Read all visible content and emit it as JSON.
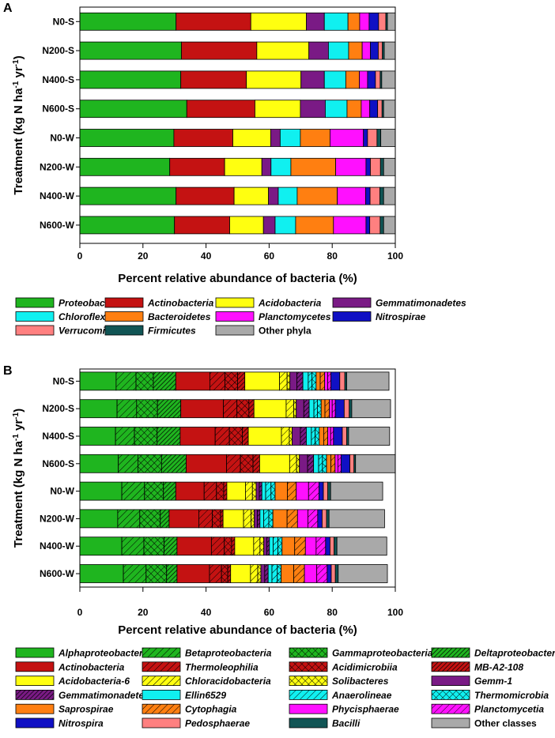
{
  "chart_data": [
    {
      "panel": "A",
      "type": "bar",
      "orientation": "horizontal",
      "stacked": true,
      "xlabel": "Percent relative abundance of bacteria (%)",
      "ylabel": "Treatment (kg N ha-1 yr-1)",
      "ylabel_parts": [
        "Treatment (kg N ha",
        "-1",
        " yr",
        "-1",
        ")"
      ],
      "xlim": [
        0,
        100
      ],
      "xticks": [
        0,
        20,
        40,
        60,
        80,
        100
      ],
      "categories": [
        "N0-S",
        "N200-S",
        "N400-S",
        "N600-S",
        "N0-W",
        "N200-W",
        "N400-W",
        "N600-W"
      ],
      "series": [
        {
          "name": "Proteobacteria",
          "color": "#1fb51f",
          "values": [
            30.5,
            32.2,
            32.0,
            33.9,
            29.8,
            28.5,
            30.5,
            30.0
          ]
        },
        {
          "name": "Actinobacteria",
          "color": "#c41212",
          "values": [
            23.7,
            23.9,
            20.8,
            21.6,
            18.7,
            17.4,
            18.4,
            17.5
          ]
        },
        {
          "name": "Acidobacteria",
          "color": "#ffff10",
          "values": [
            17.6,
            16.5,
            17.3,
            14.4,
            12.0,
            11.8,
            10.9,
            10.7
          ]
        },
        {
          "name": "Gemmatimonadetes",
          "color": "#7a1a85",
          "values": [
            5.7,
            6.2,
            7.4,
            7.9,
            3.0,
            2.9,
            3.1,
            3.7
          ]
        },
        {
          "name": "Chloroflexi",
          "color": "#10f0f0",
          "values": [
            7.5,
            6.4,
            6.8,
            6.9,
            6.4,
            6.3,
            6.0,
            6.5
          ]
        },
        {
          "name": "Bacteroidetes",
          "color": "#ff7f11",
          "values": [
            3.7,
            4.3,
            4.3,
            4.5,
            9.4,
            14.2,
            12.7,
            12.0
          ]
        },
        {
          "name": "Planctomycetes",
          "color": "#ff10ff",
          "values": [
            3.0,
            2.6,
            2.6,
            2.7,
            10.6,
            9.6,
            9.0,
            10.3
          ]
        },
        {
          "name": "Nitrospirae",
          "color": "#1010c4",
          "values": [
            3.0,
            2.5,
            2.5,
            2.5,
            1.3,
            1.4,
            1.4,
            1.2
          ]
        },
        {
          "name": "Verrucomicrobia",
          "color": "#ff8080",
          "values": [
            2.3,
            1.3,
            1.5,
            1.4,
            3.0,
            3.2,
            3.1,
            3.3
          ]
        },
        {
          "name": "Firmicutes",
          "color": "#115555",
          "values": [
            0.5,
            0.6,
            0.5,
            0.5,
            1.2,
            1.0,
            1.2,
            1.1
          ]
        },
        {
          "name": "Other phyla",
          "color": "#a9a9a9",
          "values": [
            2.5,
            3.5,
            4.3,
            3.7,
            4.6,
            3.7,
            3.7,
            3.7
          ]
        }
      ]
    },
    {
      "panel": "B",
      "type": "bar",
      "orientation": "horizontal",
      "stacked": true,
      "xlabel": "Percent relative abundance of bacteria (%)",
      "ylabel": "Treatment (kg N ha-1 yr-1)",
      "ylabel_parts": [
        "Treatment (kg N ha",
        "-1",
        " yr",
        "-1",
        ")"
      ],
      "xlim": [
        0,
        100
      ],
      "xticks": [
        0,
        20,
        40,
        60,
        80,
        100
      ],
      "categories": [
        "N0-S",
        "N200-S",
        "N400-S",
        "N600-S",
        "N0-W",
        "N200-W",
        "N400-W",
        "N600-W"
      ],
      "series": [
        {
          "name": "Alphaproteobacteria",
          "color": "#1fb51f",
          "pattern": "none",
          "values": [
            11.5,
            11.8,
            11.3,
            12.2,
            13.3,
            12.0,
            13.3,
            13.8
          ]
        },
        {
          "name": "Betaproteobacteria",
          "color": "#1fb51f",
          "pattern": "diag",
          "values": [
            6.3,
            6.2,
            6.0,
            6.2,
            7.2,
            7.0,
            7.0,
            7.2
          ]
        },
        {
          "name": "Gammaproteobacteria",
          "color": "#1fb51f",
          "pattern": "cross",
          "values": [
            5.5,
            6.6,
            7.2,
            7.5,
            6.0,
            6.5,
            6.4,
            6.5
          ]
        },
        {
          "name": "Deltaproteobacteria",
          "color": "#1fb51f",
          "pattern": "dense",
          "values": [
            7.1,
            7.4,
            7.3,
            7.8,
            3.9,
            2.8,
            4.1,
            3.3
          ]
        },
        {
          "name": "Actinobacteria",
          "color": "#c41212",
          "pattern": "none",
          "values": [
            10.8,
            13.5,
            11.1,
            12.8,
            9.0,
            9.4,
            10.9,
            10.3
          ]
        },
        {
          "name": "Thermoleophilia",
          "color": "#c41212",
          "pattern": "diag",
          "values": [
            4.8,
            4.3,
            4.5,
            4.4,
            3.9,
            4.3,
            4.1,
            3.8
          ]
        },
        {
          "name": "Acidimicrobiia",
          "color": "#c41212",
          "pattern": "cross",
          "values": [
            4.0,
            3.8,
            4.1,
            4.0,
            2.3,
            2.6,
            2.3,
            2.0
          ]
        },
        {
          "name": "MB-A2-108",
          "color": "#c41212",
          "pattern": "dense",
          "values": [
            2.3,
            1.6,
            1.9,
            2.1,
            1.0,
            0.8,
            1.0,
            0.9
          ]
        },
        {
          "name": "Acidobacteria-6",
          "color": "#ffff10",
          "pattern": "none",
          "values": [
            11.0,
            10.2,
            10.5,
            9.5,
            5.9,
            6.5,
            6.0,
            6.3
          ]
        },
        {
          "name": "Chloracidobacteria",
          "color": "#ffff10",
          "pattern": "diag",
          "values": [
            2.4,
            2.4,
            2.5,
            2.2,
            2.2,
            2.4,
            2.0,
            2.3
          ]
        },
        {
          "name": "Solibacteres",
          "color": "#ffff10",
          "pattern": "cross",
          "values": [
            0.9,
            0.8,
            0.9,
            0.9,
            1.2,
            1.0,
            1.2,
            1.0
          ]
        },
        {
          "name": "Gemm-1",
          "color": "#7a1a85",
          "pattern": "none",
          "values": [
            2.2,
            2.4,
            2.6,
            2.6,
            1.0,
            1.0,
            1.0,
            1.2
          ]
        },
        {
          "name": "Gemmatimonadetes",
          "color": "#7a1a85",
          "pattern": "dense",
          "values": [
            1.9,
            1.7,
            1.9,
            1.9,
            0.8,
            0.8,
            0.8,
            1.1
          ]
        },
        {
          "name": "Ellin6529",
          "color": "#10f0f0",
          "pattern": "none",
          "values": [
            1.7,
            1.5,
            1.6,
            1.6,
            1.2,
            1.2,
            1.2,
            1.2
          ]
        },
        {
          "name": "Anaerolineae",
          "color": "#10f0f0",
          "pattern": "diag",
          "values": [
            1.2,
            1.1,
            1.2,
            1.2,
            1.7,
            1.6,
            1.5,
            1.7
          ]
        },
        {
          "name": "Thermomicrobia",
          "color": "#10f0f0",
          "pattern": "cross",
          "values": [
            1.3,
            1.2,
            1.3,
            1.3,
            1.3,
            1.3,
            1.3,
            1.2
          ]
        },
        {
          "name": "Saprospirae",
          "color": "#ff7f11",
          "pattern": "none",
          "values": [
            1.3,
            1.2,
            1.4,
            1.4,
            3.9,
            4.5,
            4.0,
            4.0
          ]
        },
        {
          "name": "Cytophagia",
          "color": "#ff7f11",
          "pattern": "diag",
          "values": [
            1.4,
            1.4,
            1.3,
            1.3,
            2.8,
            3.3,
            3.4,
            3.4
          ]
        },
        {
          "name": "Phycisphaerae",
          "color": "#ff10ff",
          "pattern": "none",
          "values": [
            1.0,
            0.9,
            0.9,
            0.9,
            3.9,
            3.3,
            3.4,
            3.9
          ]
        },
        {
          "name": "Planctomycetia",
          "color": "#ff10ff",
          "pattern": "diag",
          "values": [
            1.0,
            1.0,
            0.9,
            1.0,
            3.3,
            3.1,
            3.0,
            3.3
          ]
        },
        {
          "name": "Nitrospira",
          "color": "#1010c4",
          "pattern": "none",
          "values": [
            2.8,
            2.8,
            2.8,
            2.8,
            1.4,
            1.4,
            1.4,
            1.3
          ]
        },
        {
          "name": "Pedosphaerae",
          "color": "#ff8080",
          "pattern": "none",
          "values": [
            1.6,
            1.6,
            1.4,
            1.3,
            1.4,
            1.4,
            1.3,
            1.3
          ]
        },
        {
          "name": "Bacilli",
          "color": "#115555",
          "pattern": "none",
          "values": [
            0.6,
            0.8,
            0.6,
            0.5,
            0.9,
            0.8,
            0.9,
            0.9
          ]
        },
        {
          "name": "Other classes",
          "color": "#a9a9a9",
          "pattern": "none",
          "values": [
            13.4,
            12.3,
            13.0,
            12.6,
            16.5,
            17.6,
            15.8,
            15.6
          ]
        }
      ]
    }
  ]
}
